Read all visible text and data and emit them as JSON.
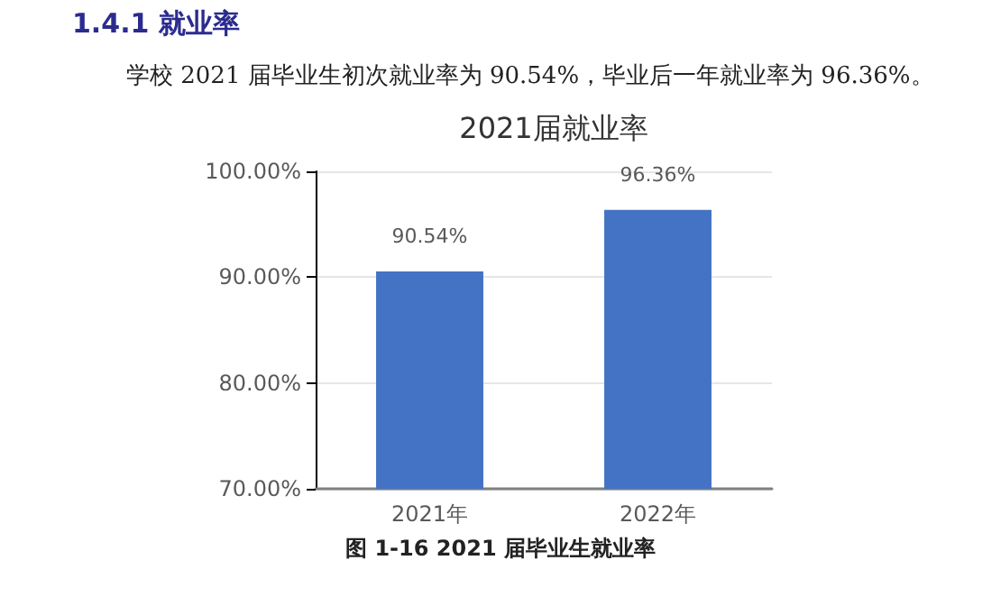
{
  "chart_data": {
    "type": "bar",
    "title": "2021届就业率",
    "annotations": [
      "1.4.1  就业率",
      "学校 2021 届毕业生初次就业率为 90.54%，毕业后一年就业率为 96.36%。",
      "图 1-16 2021 届毕业生就业率"
    ],
    "categories": [
      "2021年",
      "2022年"
    ],
    "values": [
      90.54,
      96.36
    ],
    "value_labels": [
      "90.54%",
      "96.36%"
    ],
    "color": "#4472c4",
    "ylim": [
      70,
      100
    ],
    "yticks": [
      {
        "value": 70,
        "label": "70.00%"
      },
      {
        "value": 80,
        "label": "80.00%"
      },
      {
        "value": 90,
        "label": "90.00%"
      },
      {
        "value": 100,
        "label": "100.00%"
      }
    ],
    "grid": "y"
  }
}
